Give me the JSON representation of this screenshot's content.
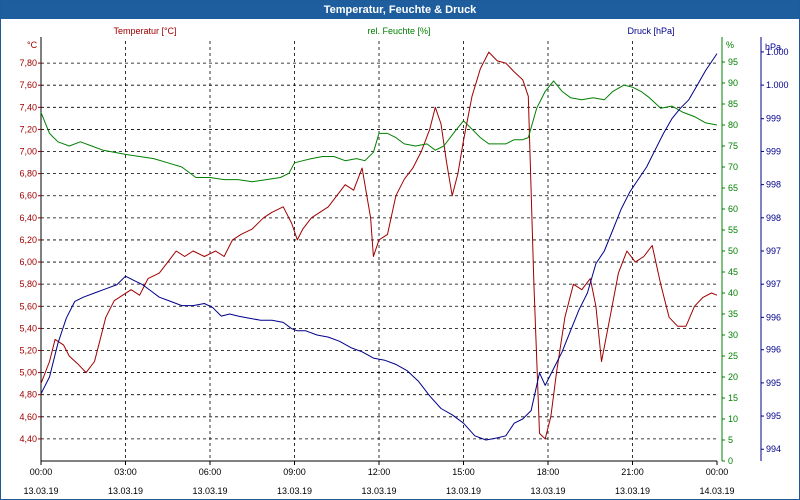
{
  "window": {
    "title": "Temperatur, Feuchte & Druck"
  },
  "colors": {
    "temperature": "#a00000",
    "humidity": "#008000",
    "pressure": "#00008b",
    "grid": "#000000",
    "axis_text": "#000000"
  },
  "chart_data": {
    "type": "line",
    "title": "Temperatur, Feuchte & Druck",
    "x_ticks": [
      {
        "time": "00:00",
        "date": "13.03.19"
      },
      {
        "time": "03:00",
        "date": "13.03.19"
      },
      {
        "time": "06:00",
        "date": "13.03.19"
      },
      {
        "time": "09:00",
        "date": "13.03.19"
      },
      {
        "time": "12:00",
        "date": "13.03.19"
      },
      {
        "time": "15:00",
        "date": "13.03.19"
      },
      {
        "time": "18:00",
        "date": "13.03.19"
      },
      {
        "time": "21:00",
        "date": "13.03.19"
      },
      {
        "time": "00:00",
        "date": "14.03.19"
      }
    ],
    "x_range_hours": [
      0,
      24
    ],
    "axes": {
      "temperature": {
        "label": "Temperatur [°C]",
        "unit": "°C",
        "range": [
          4.2,
          8.0
        ],
        "ticks": [
          "4,40",
          "4,60",
          "4,80",
          "5,00",
          "5,20",
          "5,40",
          "5,60",
          "5,80",
          "6,00",
          "6,20",
          "6,40",
          "6,60",
          "6,80",
          "7,00",
          "7,20",
          "7,40",
          "7,60",
          "7,80"
        ],
        "tick_values": [
          4.4,
          4.6,
          4.8,
          5.0,
          5.2,
          5.4,
          5.6,
          5.8,
          6.0,
          6.2,
          6.4,
          6.6,
          6.8,
          7.0,
          7.2,
          7.4,
          7.6,
          7.8
        ]
      },
      "humidity": {
        "label": "rel. Feuchte [%]",
        "unit": "%",
        "range": [
          0,
          100
        ],
        "ticks": [
          "0",
          "5",
          "10",
          "15",
          "20",
          "25",
          "30",
          "35",
          "40",
          "45",
          "50",
          "55",
          "60",
          "65",
          "70",
          "75",
          "80",
          "85",
          "90",
          "95"
        ],
        "tick_values": [
          0,
          5,
          10,
          15,
          20,
          25,
          30,
          35,
          40,
          45,
          50,
          55,
          60,
          65,
          70,
          75,
          80,
          85,
          90,
          95
        ]
      },
      "pressure": {
        "label": "Druck [hPa]",
        "unit": "hPa",
        "range": [
          0,
          1
        ],
        "ticks": [
          "994",
          "995",
          "995",
          "996",
          "996",
          "997",
          "997",
          "998",
          "998",
          "999",
          "999",
          "1.000",
          "1.000"
        ],
        "tick_values": [
          0.028,
          0.107,
          0.186,
          0.265,
          0.342,
          0.421,
          0.5,
          0.579,
          0.658,
          0.737,
          0.815,
          0.895,
          0.974
        ]
      }
    },
    "series": [
      {
        "name": "Temperatur [°C]",
        "axis": "temperature",
        "points": [
          [
            0,
            4.9
          ],
          [
            0.3,
            5.1
          ],
          [
            0.5,
            5.3
          ],
          [
            0.8,
            5.25
          ],
          [
            1.0,
            5.15
          ],
          [
            1.3,
            5.08
          ],
          [
            1.6,
            5.0
          ],
          [
            1.9,
            5.1
          ],
          [
            2.1,
            5.3
          ],
          [
            2.3,
            5.5
          ],
          [
            2.6,
            5.65
          ],
          [
            2.9,
            5.7
          ],
          [
            3.2,
            5.75
          ],
          [
            3.5,
            5.7
          ],
          [
            3.8,
            5.85
          ],
          [
            4.2,
            5.9
          ],
          [
            4.5,
            6.0
          ],
          [
            4.8,
            6.1
          ],
          [
            5.1,
            6.05
          ],
          [
            5.4,
            6.1
          ],
          [
            5.8,
            6.05
          ],
          [
            6.2,
            6.1
          ],
          [
            6.5,
            6.05
          ],
          [
            6.8,
            6.2
          ],
          [
            7.1,
            6.25
          ],
          [
            7.5,
            6.3
          ],
          [
            7.9,
            6.4
          ],
          [
            8.2,
            6.45
          ],
          [
            8.6,
            6.5
          ],
          [
            8.9,
            6.35
          ],
          [
            9.1,
            6.2
          ],
          [
            9.3,
            6.3
          ],
          [
            9.6,
            6.4
          ],
          [
            9.9,
            6.45
          ],
          [
            10.2,
            6.5
          ],
          [
            10.5,
            6.6
          ],
          [
            10.8,
            6.7
          ],
          [
            11.1,
            6.65
          ],
          [
            11.4,
            6.85
          ],
          [
            11.7,
            6.4
          ],
          [
            11.8,
            6.05
          ],
          [
            12.0,
            6.2
          ],
          [
            12.3,
            6.25
          ],
          [
            12.6,
            6.6
          ],
          [
            12.9,
            6.75
          ],
          [
            13.2,
            6.85
          ],
          [
            13.5,
            7.0
          ],
          [
            13.8,
            7.2
          ],
          [
            14.0,
            7.4
          ],
          [
            14.2,
            7.25
          ],
          [
            14.4,
            6.9
          ],
          [
            14.6,
            6.6
          ],
          [
            14.8,
            6.8
          ],
          [
            15.0,
            7.1
          ],
          [
            15.3,
            7.5
          ],
          [
            15.6,
            7.75
          ],
          [
            15.9,
            7.9
          ],
          [
            16.2,
            7.82
          ],
          [
            16.5,
            7.8
          ],
          [
            16.8,
            7.72
          ],
          [
            17.1,
            7.65
          ],
          [
            17.3,
            7.5
          ],
          [
            17.5,
            5.8
          ],
          [
            17.7,
            4.45
          ],
          [
            17.9,
            4.4
          ],
          [
            18.1,
            4.6
          ],
          [
            18.3,
            5.0
          ],
          [
            18.6,
            5.5
          ],
          [
            18.9,
            5.8
          ],
          [
            19.2,
            5.75
          ],
          [
            19.5,
            5.85
          ],
          [
            19.7,
            5.6
          ],
          [
            19.9,
            5.1
          ],
          [
            20.2,
            5.5
          ],
          [
            20.5,
            5.9
          ],
          [
            20.8,
            6.1
          ],
          [
            21.1,
            6.0
          ],
          [
            21.4,
            6.05
          ],
          [
            21.7,
            6.15
          ],
          [
            22.0,
            5.8
          ],
          [
            22.3,
            5.5
          ],
          [
            22.6,
            5.42
          ],
          [
            22.9,
            5.42
          ],
          [
            23.2,
            5.6
          ],
          [
            23.5,
            5.68
          ],
          [
            23.8,
            5.72
          ],
          [
            24,
            5.7
          ]
        ]
      },
      {
        "name": "rel. Feuchte [%]",
        "axis": "humidity",
        "points": [
          [
            0,
            83
          ],
          [
            0.3,
            78
          ],
          [
            0.6,
            76
          ],
          [
            1.0,
            75
          ],
          [
            1.4,
            76
          ],
          [
            1.8,
            75
          ],
          [
            2.2,
            74
          ],
          [
            2.6,
            73.5
          ],
          [
            3.0,
            73
          ],
          [
            3.5,
            72.5
          ],
          [
            4.0,
            72
          ],
          [
            4.5,
            71
          ],
          [
            5.0,
            70
          ],
          [
            5.5,
            67.5
          ],
          [
            6.0,
            67.5
          ],
          [
            6.5,
            67
          ],
          [
            7.0,
            67
          ],
          [
            7.5,
            66.5
          ],
          [
            8.0,
            67
          ],
          [
            8.5,
            67.5
          ],
          [
            8.8,
            68.5
          ],
          [
            9.0,
            71
          ],
          [
            9.3,
            71.5
          ],
          [
            9.6,
            72
          ],
          [
            10.0,
            72.5
          ],
          [
            10.4,
            72.5
          ],
          [
            10.8,
            71.5
          ],
          [
            11.2,
            72
          ],
          [
            11.5,
            71.5
          ],
          [
            11.8,
            73.5
          ],
          [
            12.0,
            78
          ],
          [
            12.3,
            78
          ],
          [
            12.6,
            77
          ],
          [
            12.9,
            75.5
          ],
          [
            13.3,
            75
          ],
          [
            13.7,
            75.5
          ],
          [
            14.0,
            74
          ],
          [
            14.3,
            75
          ],
          [
            14.7,
            78.5
          ],
          [
            15.0,
            81
          ],
          [
            15.3,
            79
          ],
          [
            15.6,
            77
          ],
          [
            15.9,
            75.5
          ],
          [
            16.2,
            75.5
          ],
          [
            16.5,
            75.5
          ],
          [
            16.8,
            76.5
          ],
          [
            17.1,
            76.5
          ],
          [
            17.3,
            77
          ],
          [
            17.6,
            84
          ],
          [
            17.9,
            88
          ],
          [
            18.2,
            90.5
          ],
          [
            18.5,
            88
          ],
          [
            18.8,
            86.5
          ],
          [
            19.2,
            86
          ],
          [
            19.6,
            86.5
          ],
          [
            20.0,
            86
          ],
          [
            20.3,
            88
          ],
          [
            20.7,
            89.5
          ],
          [
            21.0,
            89
          ],
          [
            21.3,
            88
          ],
          [
            21.6,
            86.5
          ],
          [
            22.0,
            84
          ],
          [
            22.4,
            84.5
          ],
          [
            22.8,
            83
          ],
          [
            23.2,
            82
          ],
          [
            23.6,
            80.5
          ],
          [
            24,
            80
          ]
        ]
      },
      {
        "name": "Druck [hPa]",
        "axis": "pressure",
        "points": [
          [
            0,
            0.16
          ],
          [
            0.3,
            0.2
          ],
          [
            0.6,
            0.28
          ],
          [
            0.9,
            0.34
          ],
          [
            1.2,
            0.38
          ],
          [
            1.5,
            0.39
          ],
          [
            1.9,
            0.4
          ],
          [
            2.3,
            0.41
          ],
          [
            2.7,
            0.42
          ],
          [
            3.0,
            0.44
          ],
          [
            3.3,
            0.43
          ],
          [
            3.6,
            0.42
          ],
          [
            3.9,
            0.405
          ],
          [
            4.2,
            0.39
          ],
          [
            4.6,
            0.38
          ],
          [
            5.0,
            0.37
          ],
          [
            5.4,
            0.37
          ],
          [
            5.8,
            0.375
          ],
          [
            6.1,
            0.365
          ],
          [
            6.4,
            0.345
          ],
          [
            6.7,
            0.35
          ],
          [
            7.0,
            0.345
          ],
          [
            7.4,
            0.34
          ],
          [
            7.8,
            0.335
          ],
          [
            8.2,
            0.335
          ],
          [
            8.6,
            0.33
          ],
          [
            8.9,
            0.315
          ],
          [
            9.1,
            0.31
          ],
          [
            9.4,
            0.31
          ],
          [
            9.8,
            0.3
          ],
          [
            10.2,
            0.295
          ],
          [
            10.6,
            0.285
          ],
          [
            11.0,
            0.27
          ],
          [
            11.4,
            0.26
          ],
          [
            11.8,
            0.245
          ],
          [
            12.2,
            0.24
          ],
          [
            12.6,
            0.23
          ],
          [
            13.0,
            0.215
          ],
          [
            13.4,
            0.19
          ],
          [
            13.8,
            0.155
          ],
          [
            14.2,
            0.125
          ],
          [
            14.6,
            0.11
          ],
          [
            15.0,
            0.09
          ],
          [
            15.4,
            0.06
          ],
          [
            15.8,
            0.05
          ],
          [
            16.2,
            0.055
          ],
          [
            16.5,
            0.06
          ],
          [
            16.8,
            0.09
          ],
          [
            17.1,
            0.1
          ],
          [
            17.4,
            0.12
          ],
          [
            17.7,
            0.21
          ],
          [
            17.9,
            0.18
          ],
          [
            18.2,
            0.22
          ],
          [
            18.5,
            0.26
          ],
          [
            18.8,
            0.31
          ],
          [
            19.1,
            0.36
          ],
          [
            19.4,
            0.4
          ],
          [
            19.7,
            0.47
          ],
          [
            20.0,
            0.5
          ],
          [
            20.3,
            0.55
          ],
          [
            20.6,
            0.6
          ],
          [
            20.9,
            0.64
          ],
          [
            21.2,
            0.67
          ],
          [
            21.5,
            0.7
          ],
          [
            21.8,
            0.74
          ],
          [
            22.1,
            0.78
          ],
          [
            22.4,
            0.815
          ],
          [
            22.7,
            0.84
          ],
          [
            23.0,
            0.86
          ],
          [
            23.3,
            0.895
          ],
          [
            23.6,
            0.93
          ],
          [
            24,
            0.97
          ]
        ]
      }
    ]
  }
}
